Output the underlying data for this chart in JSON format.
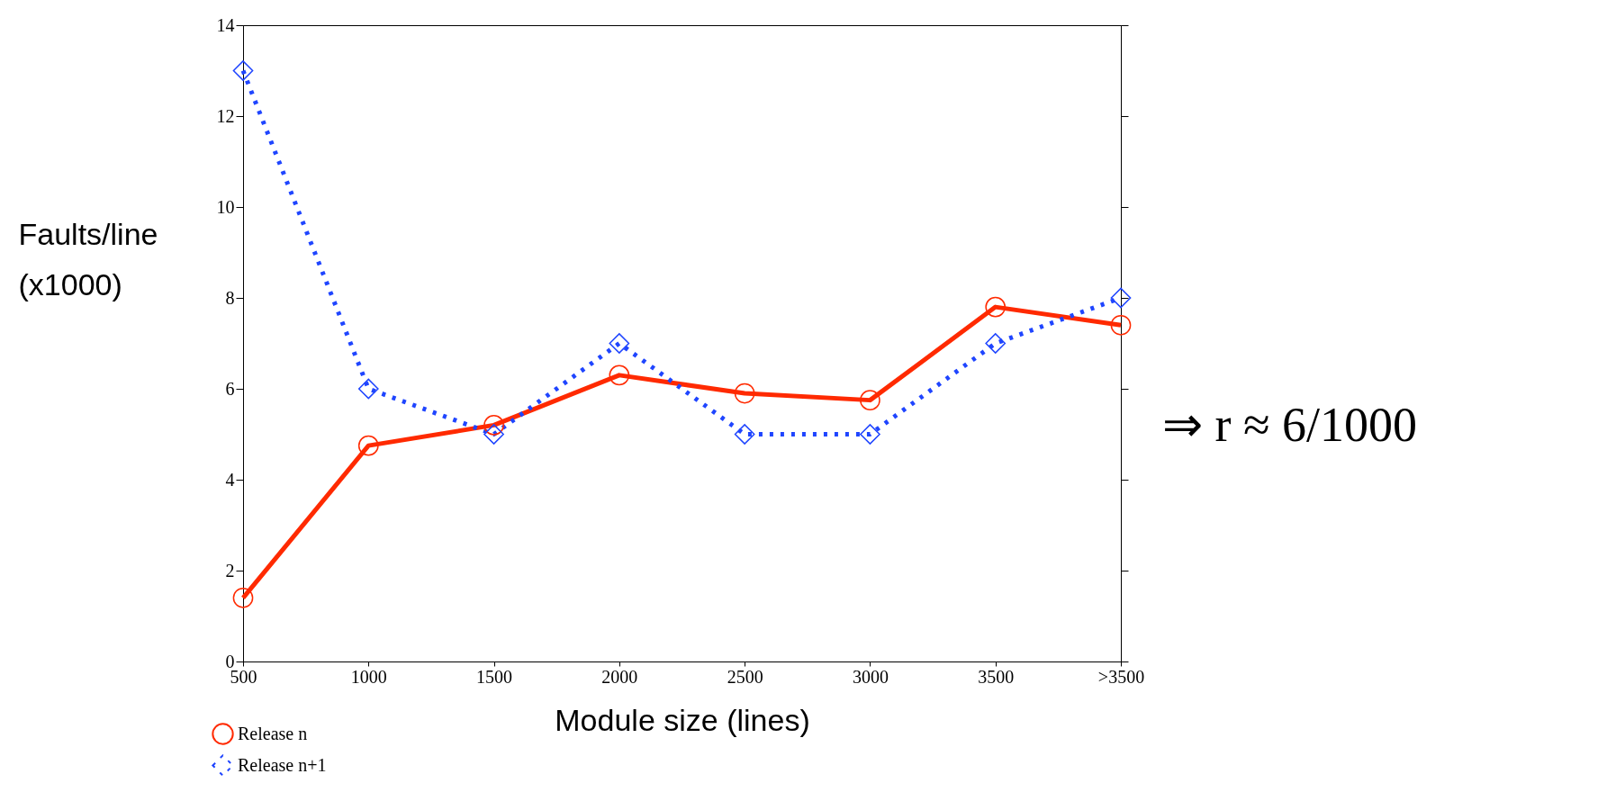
{
  "chart_data": {
    "type": "line",
    "xlabel": "Module size (lines)",
    "ylabel": "Faults/line\n(x1000)",
    "categories": [
      "500",
      "1000",
      "1500",
      "2000",
      "2500",
      "3000",
      "3500",
      ">3500"
    ],
    "series": [
      {
        "name": "Release n",
        "color": "#ff2a00",
        "values": [
          1.4,
          4.75,
          5.2,
          6.3,
          5.9,
          5.75,
          7.8,
          7.4
        ],
        "marker": "circle",
        "line_style": "solid"
      },
      {
        "name": "Release n+1",
        "color": "#1f45ff",
        "values": [
          13,
          6,
          5,
          7,
          5,
          5,
          7,
          8
        ],
        "marker": "diamond",
        "line_style": "dotted"
      }
    ],
    "ylim": [
      0,
      14
    ],
    "yticks": [
      0,
      2,
      4,
      6,
      8,
      10,
      12,
      14
    ],
    "grid": false,
    "legend": "bottom left",
    "annotations": [
      "⇒ r ≈ 6/1000"
    ]
  }
}
